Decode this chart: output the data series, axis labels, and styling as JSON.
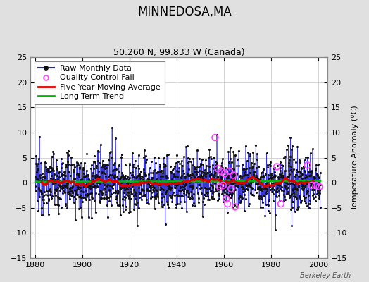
{
  "title": "MINNEDOSA,MA",
  "subtitle": "50.260 N, 99.833 W (Canada)",
  "ylabel": "Temperature Anomaly (°C)",
  "xlim": [
    1878,
    2004
  ],
  "ylim": [
    -15,
    25
  ],
  "yticks": [
    -15,
    -10,
    -5,
    0,
    5,
    10,
    15,
    20,
    25
  ],
  "xticks": [
    1880,
    1900,
    1920,
    1940,
    1960,
    1980,
    2000
  ],
  "fig_background": "#e0e0e0",
  "plot_background": "#ffffff",
  "grid_color": "#cccccc",
  "raw_line_color": "#2222cc",
  "raw_dot_color": "#111111",
  "moving_avg_color": "#dd0000",
  "trend_color": "#00bb00",
  "qc_fail_color": "#ff44ff",
  "watermark": "Berkeley Earth",
  "seed": 12345,
  "n_months": 1452,
  "start_year": 1880.0,
  "end_year": 2001.0,
  "noise_std": 2.8,
  "title_fontsize": 12,
  "subtitle_fontsize": 9,
  "ylabel_fontsize": 8,
  "tick_fontsize": 8,
  "legend_fontsize": 8,
  "watermark_fontsize": 7,
  "qc_x": [
    1956.3,
    1957.5,
    1958.2,
    1959.0,
    1959.7,
    1960.3,
    1961.0,
    1961.6,
    1962.3,
    1963.1,
    1964.0,
    1964.8,
    1982.5,
    1984.2,
    1995.5,
    1997.2,
    1999.0,
    2000.5
  ],
  "qc_y": [
    9.0,
    2.8,
    -0.8,
    2.2,
    -0.5,
    1.8,
    -3.2,
    -4.2,
    2.3,
    -1.2,
    1.5,
    -4.8,
    3.2,
    -4.2,
    3.5,
    -0.5,
    -0.5,
    -0.8
  ]
}
